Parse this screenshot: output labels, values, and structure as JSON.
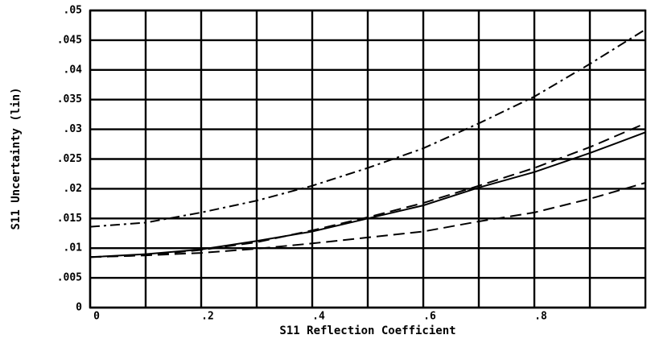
{
  "chart_data": {
    "type": "line",
    "xlabel": "S11 Reflection Coefficient",
    "ylabel": "S11 Uncertainty (lin)",
    "x": [
      0,
      0.1,
      0.2,
      0.3,
      0.4,
      0.5,
      0.6,
      0.7,
      0.8,
      0.9,
      1.0
    ],
    "series": [
      {
        "color": "#000000",
        "linestyle": "solid",
        "values": [
          0.0085,
          0.009,
          0.0098,
          0.0112,
          0.0128,
          0.015,
          0.0172,
          0.0202,
          0.0228,
          0.026,
          0.0295
        ]
      },
      {
        "color": "#000000",
        "linestyle": "dashed",
        "values": [
          0.0085,
          0.0088,
          0.0097,
          0.011,
          0.013,
          0.0152,
          0.0176,
          0.0205,
          0.0235,
          0.027,
          0.031
        ]
      },
      {
        "color": "#000000",
        "linestyle": "dashed",
        "values": [
          0.0085,
          0.0088,
          0.0092,
          0.0099,
          0.0108,
          0.0118,
          0.0128,
          0.0145,
          0.016,
          0.0183,
          0.021
        ]
      },
      {
        "color": "#000000",
        "linestyle": "dashdot",
        "values": [
          0.0136,
          0.0143,
          0.016,
          0.018,
          0.0205,
          0.0235,
          0.0268,
          0.031,
          0.0355,
          0.041,
          0.0468
        ]
      }
    ],
    "xlim": [
      0,
      1
    ],
    "ylim": [
      0,
      0.05
    ],
    "xticks": [
      0,
      {
        "value": 0.2,
        "label": ".2"
      },
      {
        "value": 0.4,
        "label": ".4"
      },
      {
        "value": 0.6,
        "label": ".6"
      },
      {
        "value": 0.8,
        "label": ".8"
      }
    ],
    "xminor": [
      0.1,
      0.3,
      0.5,
      0.7,
      0.9
    ],
    "yticks": [
      0,
      {
        "value": 0.005,
        "label": ".005"
      },
      {
        "value": 0.01,
        "label": ".01"
      },
      {
        "value": 0.015,
        "label": ".015"
      },
      {
        "value": 0.02,
        "label": ".02"
      },
      {
        "value": 0.025,
        "label": ".025"
      },
      {
        "value": 0.03,
        "label": ".03"
      },
      {
        "value": 0.035,
        "label": ".035"
      },
      {
        "value": 0.04,
        "label": ".04"
      },
      {
        "value": 0.045,
        "label": ".045"
      },
      {
        "value": 0.05,
        "label": ".05"
      }
    ],
    "grid": true
  }
}
